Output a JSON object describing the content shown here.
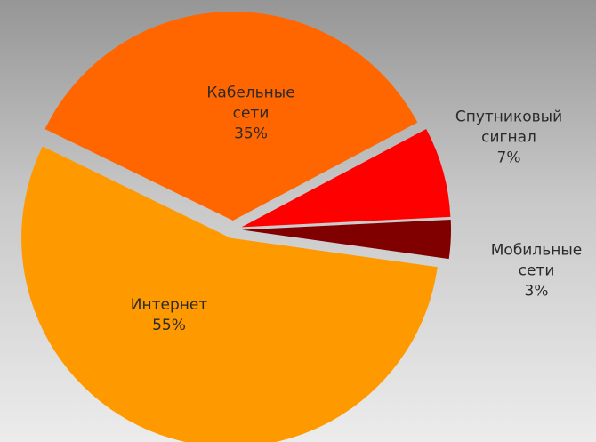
{
  "chart_data": {
    "type": "pie",
    "categories": [
      "Кабельные сети",
      "Спутниковый сигнал",
      "Мобильные сети",
      "Интернет"
    ],
    "values": [
      35,
      7,
      3,
      55
    ],
    "value_labels": [
      "35%",
      "7%",
      "3%",
      "55%"
    ],
    "colors": [
      "#ff6600",
      "#ff0000",
      "#800000",
      "#ff9900"
    ]
  }
}
